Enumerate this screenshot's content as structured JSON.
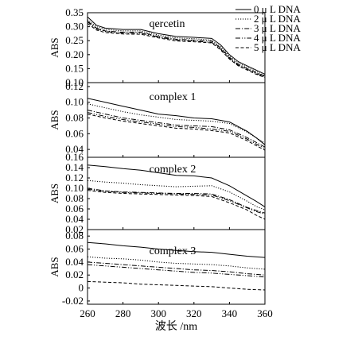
{
  "figure": {
    "xlabel": "波长 /nm",
    "x_ticks": [
      "260",
      "280",
      "300",
      "320",
      "340",
      "360"
    ],
    "line_color": "#000000",
    "background": "#ffffff"
  },
  "chart_data": [
    {
      "type": "line",
      "title": "qercetin",
      "ylabel": "ABS",
      "xlim": [
        260,
        360
      ],
      "ylim": [
        0.1,
        0.35
      ],
      "y_ticks": [
        "0.35",
        "0.30",
        "0.25",
        "0.20",
        "0.15",
        "0.10"
      ],
      "x": [
        260,
        265,
        270,
        280,
        290,
        300,
        310,
        320,
        330,
        335,
        340,
        345,
        350,
        355,
        360
      ],
      "legend": {
        "placement": "top-right",
        "entries": [
          "0  μ L DNA",
          "2  μ L DNA",
          "3  μ L DNA",
          "4  μ L DNA",
          "5  μ L DNA"
        ]
      },
      "series": [
        {
          "name": "0  μ L DNA",
          "style": "solid",
          "values": [
            0.335,
            0.305,
            0.295,
            0.29,
            0.29,
            0.275,
            0.265,
            0.262,
            0.258,
            0.235,
            0.2,
            0.175,
            0.16,
            0.145,
            0.13
          ]
        },
        {
          "name": "2  μ L DNA",
          "style": "dotted",
          "values": [
            0.325,
            0.3,
            0.29,
            0.285,
            0.285,
            0.27,
            0.26,
            0.257,
            0.252,
            0.228,
            0.195,
            0.17,
            0.155,
            0.14,
            0.125
          ]
        },
        {
          "name": "3  μ L DNA",
          "style": "dashdot",
          "values": [
            0.32,
            0.295,
            0.285,
            0.28,
            0.28,
            0.265,
            0.255,
            0.252,
            0.248,
            0.224,
            0.19,
            0.165,
            0.15,
            0.136,
            0.122
          ]
        },
        {
          "name": "4  μ L DNA",
          "style": "dashdotdot",
          "values": [
            0.318,
            0.292,
            0.283,
            0.277,
            0.277,
            0.263,
            0.252,
            0.249,
            0.244,
            0.22,
            0.187,
            0.162,
            0.148,
            0.133,
            0.12
          ]
        },
        {
          "name": "5  μ L DNA",
          "style": "dashed",
          "values": [
            0.312,
            0.288,
            0.279,
            0.274,
            0.273,
            0.26,
            0.249,
            0.246,
            0.242,
            0.217,
            0.184,
            0.16,
            0.145,
            0.13,
            0.118
          ]
        }
      ]
    },
    {
      "type": "line",
      "title": "complex 1",
      "ylabel": "ABS",
      "xlim": [
        260,
        360
      ],
      "ylim": [
        0.03,
        0.125
      ],
      "y_ticks": [
        "0.12",
        "0.10",
        "0.08",
        "0.06",
        "0.04"
      ],
      "x": [
        260,
        270,
        280,
        290,
        300,
        310,
        320,
        330,
        340,
        350,
        355,
        360
      ],
      "series": [
        {
          "name": "0  μ L DNA",
          "style": "solid",
          "values": [
            0.105,
            0.1,
            0.095,
            0.09,
            0.085,
            0.083,
            0.08,
            0.079,
            0.075,
            0.063,
            0.055,
            0.046
          ]
        },
        {
          "name": "2  μ L DNA",
          "style": "dotted",
          "values": [
            0.098,
            0.093,
            0.088,
            0.084,
            0.081,
            0.078,
            0.077,
            0.076,
            0.073,
            0.062,
            0.055,
            0.048
          ]
        },
        {
          "name": "3  μ L DNA",
          "style": "dashdot",
          "values": [
            0.09,
            0.085,
            0.08,
            0.077,
            0.074,
            0.071,
            0.07,
            0.069,
            0.065,
            0.055,
            0.049,
            0.043
          ]
        },
        {
          "name": "4  μ L DNA",
          "style": "dashdotdot",
          "values": [
            0.087,
            0.082,
            0.078,
            0.075,
            0.072,
            0.069,
            0.068,
            0.066,
            0.063,
            0.053,
            0.047,
            0.041
          ]
        },
        {
          "name": "5  μ L DNA",
          "style": "dashed",
          "values": [
            0.085,
            0.08,
            0.076,
            0.073,
            0.07,
            0.067,
            0.066,
            0.064,
            0.061,
            0.051,
            0.045,
            0.039
          ]
        }
      ]
    },
    {
      "type": "line",
      "title": "complex 2",
      "ylabel": "ABS",
      "xlim": [
        260,
        360
      ],
      "ylim": [
        0.02,
        0.16
      ],
      "y_ticks": [
        "0.16",
        "0.14",
        "0.12",
        "0.10",
        "0.08",
        "0.06",
        "0.04",
        "0.02"
      ],
      "x": [
        260,
        270,
        280,
        290,
        300,
        310,
        320,
        330,
        340,
        350,
        355,
        360
      ],
      "series": [
        {
          "name": "0  μ L DNA",
          "style": "solid",
          "values": [
            0.145,
            0.142,
            0.138,
            0.135,
            0.13,
            0.125,
            0.124,
            0.12,
            0.105,
            0.085,
            0.075,
            0.064
          ]
        },
        {
          "name": "2  μ L DNA",
          "style": "dotted",
          "values": [
            0.115,
            0.112,
            0.11,
            0.107,
            0.105,
            0.103,
            0.104,
            0.105,
            0.093,
            0.075,
            0.065,
            0.058
          ]
        },
        {
          "name": "3  μ L DNA",
          "style": "dashdot",
          "values": [
            0.1,
            0.095,
            0.093,
            0.092,
            0.091,
            0.09,
            0.09,
            0.089,
            0.078,
            0.063,
            0.057,
            0.052
          ]
        },
        {
          "name": "4  μ L DNA",
          "style": "dashdotdot",
          "values": [
            0.098,
            0.094,
            0.092,
            0.091,
            0.09,
            0.089,
            0.088,
            0.087,
            0.076,
            0.062,
            0.055,
            0.05
          ]
        },
        {
          "name": "5  μ L DNA",
          "style": "dashed",
          "values": [
            0.096,
            0.092,
            0.09,
            0.089,
            0.088,
            0.087,
            0.086,
            0.084,
            0.072,
            0.058,
            0.048,
            0.04
          ]
        }
      ]
    },
    {
      "type": "line",
      "title": "complex 3",
      "ylabel": "ABS",
      "xlim": [
        260,
        360
      ],
      "ylim": [
        -0.025,
        0.09
      ],
      "y_ticks": [
        "0.08",
        "0.06",
        "0.04",
        "0.02",
        "0",
        "-0.02"
      ],
      "x": [
        260,
        270,
        280,
        290,
        300,
        310,
        320,
        330,
        340,
        350,
        360
      ],
      "series": [
        {
          "name": "0  μ L DNA",
          "style": "solid",
          "values": [
            0.07,
            0.068,
            0.065,
            0.063,
            0.06,
            0.058,
            0.056,
            0.055,
            0.052,
            0.049,
            0.047
          ]
        },
        {
          "name": "2  μ L DNA",
          "style": "dotted",
          "values": [
            0.048,
            0.046,
            0.045,
            0.043,
            0.04,
            0.038,
            0.037,
            0.036,
            0.034,
            0.031,
            0.029
          ]
        },
        {
          "name": "3  μ L DNA",
          "style": "dashdot",
          "values": [
            0.04,
            0.038,
            0.036,
            0.034,
            0.032,
            0.03,
            0.028,
            0.027,
            0.025,
            0.022,
            0.02
          ]
        },
        {
          "name": "4  μ L DNA",
          "style": "dashdotdot",
          "values": [
            0.036,
            0.034,
            0.032,
            0.03,
            0.028,
            0.026,
            0.024,
            0.023,
            0.021,
            0.019,
            0.017
          ]
        },
        {
          "name": "5  μ L DNA",
          "style": "dashed",
          "values": [
            0.01,
            0.009,
            0.008,
            0.006,
            0.005,
            0.004,
            0.003,
            0.002,
            0.0,
            -0.002,
            -0.003
          ]
        }
      ]
    }
  ]
}
